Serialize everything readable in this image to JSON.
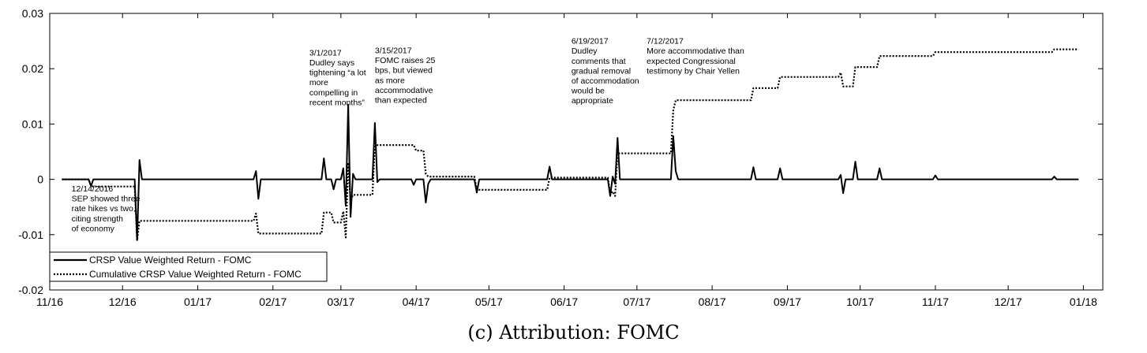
{
  "caption": "(c) Attribution: FOMC",
  "chart_data": {
    "type": "line",
    "title": "",
    "xlabel": "",
    "ylabel": "",
    "x_range": [
      "2016-11-07",
      "2018-01-15"
    ],
    "ylim": [
      -0.02,
      0.03
    ],
    "x_ticks": [
      {
        "date": "2016-11-07",
        "label": "11/16"
      },
      {
        "date": "2016-12-07",
        "label": "12/16"
      },
      {
        "date": "2017-01-07",
        "label": "01/17"
      },
      {
        "date": "2017-02-07",
        "label": "02/17"
      },
      {
        "date": "2017-03-07",
        "label": "03/17"
      },
      {
        "date": "2017-04-07",
        "label": "04/17"
      },
      {
        "date": "2017-05-07",
        "label": "05/17"
      },
      {
        "date": "2017-06-07",
        "label": "06/17"
      },
      {
        "date": "2017-07-07",
        "label": "07/17"
      },
      {
        "date": "2017-08-07",
        "label": "08/17"
      },
      {
        "date": "2017-09-07",
        "label": "09/17"
      },
      {
        "date": "2017-10-07",
        "label": "10/17"
      },
      {
        "date": "2017-11-07",
        "label": "11/17"
      },
      {
        "date": "2017-12-07",
        "label": "12/17"
      },
      {
        "date": "2018-01-07",
        "label": "01/18"
      }
    ],
    "y_ticks": [
      {
        "value": 0.03,
        "label": "0.03"
      },
      {
        "value": 0.02,
        "label": "0.02"
      },
      {
        "value": 0.01,
        "label": "0.01"
      },
      {
        "value": 0,
        "label": "0"
      },
      {
        "value": -0.01,
        "label": "-0.01"
      },
      {
        "value": -0.02,
        "label": "-0.02"
      }
    ],
    "legend_position": "bottom-left",
    "series": [
      {
        "name": "CRSP Value Weighted Return - FOMC",
        "style": "solid",
        "points": [
          [
            "2016-11-12",
            0
          ],
          [
            "2016-11-23",
            0
          ],
          [
            "2016-11-24",
            -0.0012
          ],
          [
            "2016-11-25",
            0
          ],
          [
            "2016-12-12",
            0
          ],
          [
            "2016-12-13",
            -0.011
          ],
          [
            "2016-12-14",
            0.0035
          ],
          [
            "2016-12-15",
            0
          ],
          [
            "2017-01-30",
            0
          ],
          [
            "2017-01-31",
            0.0015
          ],
          [
            "2017-02-01",
            -0.0035
          ],
          [
            "2017-02-02",
            0
          ],
          [
            "2017-02-27",
            0
          ],
          [
            "2017-02-28",
            0.0038
          ],
          [
            "2017-03-01",
            0
          ],
          [
            "2017-03-03",
            0
          ],
          [
            "2017-03-04",
            -0.0018
          ],
          [
            "2017-03-05",
            0
          ],
          [
            "2017-03-07",
            0
          ],
          [
            "2017-03-08",
            0.002
          ],
          [
            "2017-03-09",
            -0.0048
          ],
          [
            "2017-03-10",
            0.0135
          ],
          [
            "2017-03-11",
            -0.0068
          ],
          [
            "2017-03-12",
            0.001
          ],
          [
            "2017-03-13",
            0
          ],
          [
            "2017-03-20",
            0
          ],
          [
            "2017-03-21",
            0.0102
          ],
          [
            "2017-03-22",
            -0.0005
          ],
          [
            "2017-03-23",
            0
          ],
          [
            "2017-04-05",
            0
          ],
          [
            "2017-04-06",
            -0.001
          ],
          [
            "2017-04-07",
            0
          ],
          [
            "2017-04-10",
            0
          ],
          [
            "2017-04-11",
            -0.0042
          ],
          [
            "2017-04-12",
            -0.0008
          ],
          [
            "2017-04-13",
            0
          ],
          [
            "2017-05-01",
            0
          ],
          [
            "2017-05-02",
            -0.0024
          ],
          [
            "2017-05-03",
            0
          ],
          [
            "2017-05-31",
            0
          ],
          [
            "2017-06-01",
            0.0023
          ],
          [
            "2017-06-02",
            0
          ],
          [
            "2017-06-25",
            0
          ],
          [
            "2017-06-26",
            -0.003
          ],
          [
            "2017-06-27",
            0.0005
          ],
          [
            "2017-06-28",
            -0.0008
          ],
          [
            "2017-06-29",
            0.0075
          ],
          [
            "2017-06-30",
            0
          ],
          [
            "2017-07-21",
            0
          ],
          [
            "2017-07-22",
            0.0078
          ],
          [
            "2017-07-23",
            0.0015
          ],
          [
            "2017-07-24",
            0
          ],
          [
            "2017-08-23",
            0
          ],
          [
            "2017-08-24",
            0.0022
          ],
          [
            "2017-08-25",
            0
          ],
          [
            "2017-09-03",
            0
          ],
          [
            "2017-09-04",
            0.002
          ],
          [
            "2017-09-05",
            0
          ],
          [
            "2017-09-28",
            0
          ],
          [
            "2017-09-29",
            0.0008
          ],
          [
            "2017-09-30",
            -0.0025
          ],
          [
            "2017-10-01",
            0
          ],
          [
            "2017-10-04",
            0
          ],
          [
            "2017-10-05",
            0.0032
          ],
          [
            "2017-10-06",
            0
          ],
          [
            "2017-10-14",
            0
          ],
          [
            "2017-10-15",
            0.002
          ],
          [
            "2017-10-16",
            0
          ],
          [
            "2017-11-06",
            0
          ],
          [
            "2017-11-07",
            0.0007
          ],
          [
            "2017-11-08",
            0
          ],
          [
            "2017-12-25",
            0
          ],
          [
            "2017-12-26",
            0.0005
          ],
          [
            "2017-12-27",
            0
          ],
          [
            "2018-01-05",
            0
          ]
        ]
      },
      {
        "name": "Cumulative CRSP Value Weighted Return - FOMC",
        "style": "dotted",
        "points": [
          [
            "2016-11-12",
            0
          ],
          [
            "2016-11-23",
            0
          ],
          [
            "2016-11-24",
            -0.0012
          ],
          [
            "2016-11-25",
            -0.0013
          ],
          [
            "2016-12-12",
            -0.0013
          ],
          [
            "2016-12-13",
            -0.011
          ],
          [
            "2016-12-14",
            -0.0075
          ],
          [
            "2017-01-30",
            -0.0075
          ],
          [
            "2017-01-31",
            -0.0062
          ],
          [
            "2017-02-01",
            -0.0098
          ],
          [
            "2017-02-27",
            -0.0098
          ],
          [
            "2017-02-28",
            -0.006
          ],
          [
            "2017-03-03",
            -0.006
          ],
          [
            "2017-03-04",
            -0.0078
          ],
          [
            "2017-03-07",
            -0.0078
          ],
          [
            "2017-03-08",
            -0.0058
          ],
          [
            "2017-03-09",
            -0.0105
          ],
          [
            "2017-03-10",
            0.003
          ],
          [
            "2017-03-11",
            -0.0038
          ],
          [
            "2017-03-12",
            -0.0028
          ],
          [
            "2017-03-13",
            -0.0028
          ],
          [
            "2017-03-20",
            -0.0028
          ],
          [
            "2017-03-21",
            0.0065
          ],
          [
            "2017-03-22",
            0.0062
          ],
          [
            "2017-04-06",
            0.0062
          ],
          [
            "2017-04-07",
            0.0052
          ],
          [
            "2017-04-10",
            0.0052
          ],
          [
            "2017-04-11",
            0.001
          ],
          [
            "2017-04-12",
            0.0005
          ],
          [
            "2017-05-01",
            0.0005
          ],
          [
            "2017-05-02",
            -0.0019
          ],
          [
            "2017-05-31",
            -0.0019
          ],
          [
            "2017-06-01",
            0.0003
          ],
          [
            "2017-06-25",
            0.0003
          ],
          [
            "2017-06-26",
            -0.0027
          ],
          [
            "2017-06-27",
            -0.0022
          ],
          [
            "2017-06-28",
            -0.003
          ],
          [
            "2017-06-29",
            0.0047
          ],
          [
            "2017-07-21",
            0.0047
          ],
          [
            "2017-07-22",
            0.0125
          ],
          [
            "2017-07-23",
            0.0143
          ],
          [
            "2017-08-23",
            0.0143
          ],
          [
            "2017-08-24",
            0.0165
          ],
          [
            "2017-09-03",
            0.0165
          ],
          [
            "2017-09-04",
            0.0185
          ],
          [
            "2017-09-28",
            0.0185
          ],
          [
            "2017-09-29",
            0.0193
          ],
          [
            "2017-09-30",
            0.0168
          ],
          [
            "2017-10-04",
            0.0168
          ],
          [
            "2017-10-05",
            0.0203
          ],
          [
            "2017-10-14",
            0.0203
          ],
          [
            "2017-10-15",
            0.0223
          ],
          [
            "2017-11-06",
            0.0223
          ],
          [
            "2017-11-07",
            0.023
          ],
          [
            "2017-12-25",
            0.023
          ],
          [
            "2017-12-26",
            0.0235
          ],
          [
            "2018-01-05",
            0.0235
          ]
        ]
      }
    ],
    "annotations": [
      {
        "date": "2016-11-16",
        "y": -0.0022,
        "lines": [
          "12/14/2016",
          "SEP showed three",
          "rate hikes vs two,",
          "citing strength",
          "of economy"
        ]
      },
      {
        "date": "2017-02-22",
        "y": 0.0224,
        "lines": [
          "3/1/2017",
          "Dudley says",
          "tightening “a lot",
          "more",
          "compelling in",
          "recent months”"
        ]
      },
      {
        "date": "2017-03-21",
        "y": 0.0228,
        "lines": [
          "3/15/2017",
          "FOMC raises 25",
          "bps, but viewed",
          "as more",
          "accommodative",
          "than expected"
        ]
      },
      {
        "date": "2017-06-10",
        "y": 0.0245,
        "lines": [
          "6/19/2017",
          "Dudley",
          "comments that",
          "gradual removal",
          "of accommodation",
          "would be",
          "appropriate"
        ]
      },
      {
        "date": "2017-07-11",
        "y": 0.0245,
        "lines": [
          "7/12/2017",
          "More accommodative than",
          "expected Congressional",
          "testimony by Chair Yellen"
        ]
      }
    ]
  }
}
